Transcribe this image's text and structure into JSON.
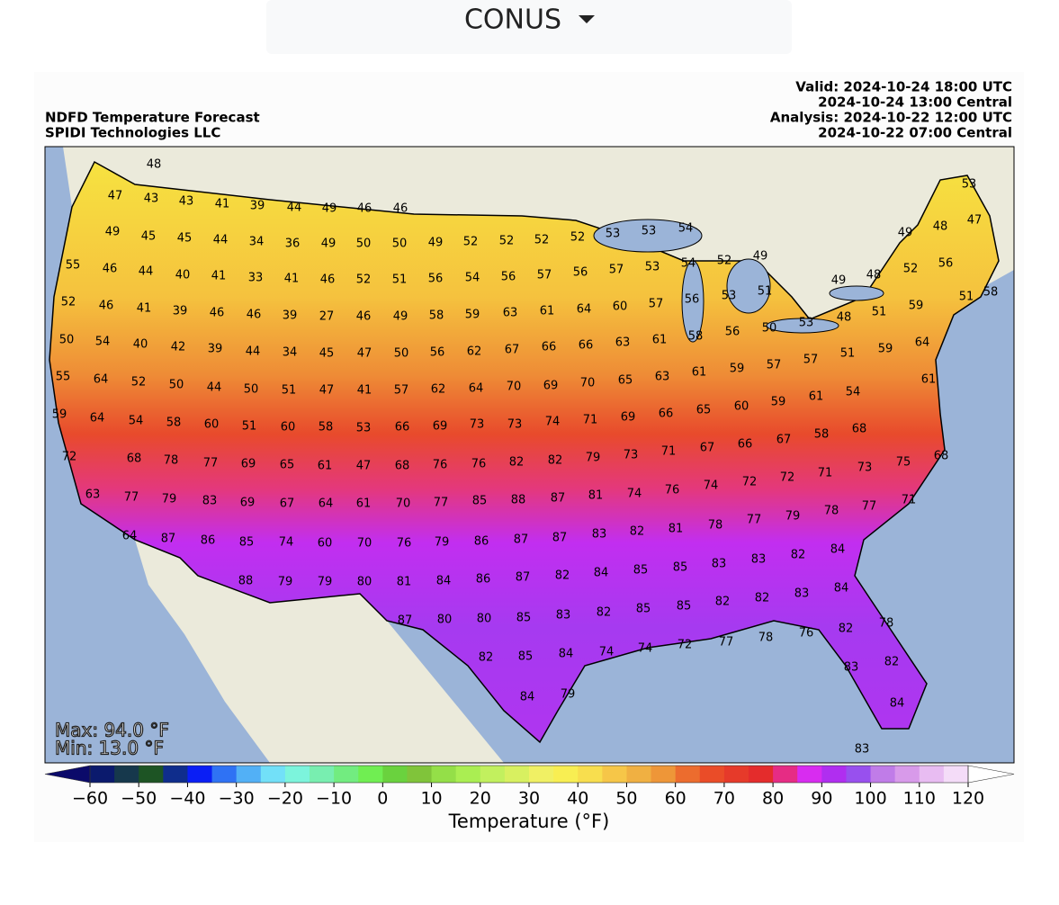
{
  "header": {
    "dropdown": "CONUS"
  },
  "figure": {
    "title_left": [
      "NDFD Temperature Forecast",
      "SPIDI Technologies LLC"
    ],
    "title_right": [
      "Valid: 2024-10-24 18:00 UTC",
      "2024-10-24 13:00 Central",
      "Analysis: 2024-10-22 12:00 UTC",
      "2024-10-22 07:00 Central"
    ],
    "stats": [
      "Max: 94.0 °F",
      "Min: 13.0 °F"
    ],
    "stations": [
      48,
      47,
      43,
      43,
      41,
      39,
      44,
      49,
      46,
      46,
      49,
      45,
      45,
      44,
      34,
      36,
      49,
      50,
      50,
      49,
      52,
      52,
      52,
      52,
      53,
      53,
      54,
      55,
      46,
      44,
      40,
      41,
      33,
      41,
      46,
      52,
      51,
      56,
      54,
      56,
      57,
      56,
      57,
      53,
      54,
      52,
      49,
      53,
      49,
      48,
      47,
      52,
      56,
      58,
      51,
      48,
      49,
      52,
      46,
      41,
      39,
      46,
      46,
      39,
      27,
      46,
      49,
      58,
      59,
      63,
      61,
      64,
      60,
      57,
      56,
      53,
      51,
      50,
      54,
      40,
      42,
      39,
      44,
      34,
      45,
      47,
      50,
      56,
      62,
      67,
      66,
      66,
      63,
      61,
      58,
      56,
      50,
      53,
      48,
      51,
      59,
      55,
      64,
      52,
      50,
      44,
      50,
      51,
      47,
      41,
      57,
      62,
      64,
      70,
      69,
      70,
      65,
      63,
      61,
      59,
      57,
      57,
      51,
      59,
      64,
      59,
      64,
      54,
      58,
      60,
      51,
      60,
      58,
      53,
      66,
      69,
      73,
      73,
      74,
      71,
      69,
      66,
      65,
      60,
      59,
      61,
      54,
      61,
      72,
      68,
      78,
      77,
      69,
      65,
      61,
      47,
      68,
      76,
      76,
      82,
      82,
      79,
      73,
      71,
      67,
      66,
      67,
      58,
      68,
      73,
      75,
      68,
      63,
      77,
      79,
      83,
      69,
      67,
      64,
      61,
      70,
      77,
      85,
      88,
      87,
      81,
      74,
      76,
      74,
      72,
      72,
      71,
      77,
      71,
      64,
      87,
      86,
      85,
      74,
      60,
      70,
      76,
      79,
      86,
      87,
      87,
      83,
      82,
      81,
      78,
      77,
      79,
      78,
      88,
      79,
      79,
      80,
      81,
      84,
      86,
      87,
      82,
      84,
      85,
      85,
      83,
      83,
      82,
      84,
      87,
      80,
      80,
      85,
      83,
      82,
      85,
      85,
      82,
      82,
      83,
      84,
      82,
      85,
      84,
      74,
      74,
      72,
      77,
      78,
      76,
      82,
      78,
      84,
      79,
      83,
      82,
      84,
      83
    ],
    "colorbar": {
      "label": "Temperature (°F)",
      "range": [
        -60,
        120
      ],
      "ticks": [
        {
          "value": -60,
          "label": "−60"
        },
        {
          "value": -50,
          "label": "−50"
        },
        {
          "value": -40,
          "label": "−40"
        },
        {
          "value": -30,
          "label": "−30"
        },
        {
          "value": -20,
          "label": "−20"
        },
        {
          "value": -10,
          "label": "−10"
        },
        0,
        10,
        20,
        30,
        40,
        50,
        60,
        70,
        80,
        90,
        100,
        110,
        120
      ],
      "colors": [
        "#0b1a6d",
        "#16384c",
        "#1d5424",
        "#0f2d8c",
        "#0a1ef5",
        "#2f72f4",
        "#52b0f6",
        "#72e0f8",
        "#7cf4dc",
        "#78eeb0",
        "#72ec80",
        "#70ee52",
        "#6ad23e",
        "#80c43a",
        "#94df48",
        "#aaee52",
        "#c2f05e",
        "#d8f060",
        "#f0f064",
        "#f8ee52",
        "#f8de4e",
        "#f6c648",
        "#f0b042",
        "#ee9638",
        "#ec6c2e",
        "#ea4c28",
        "#e63a2a",
        "#e42c2c",
        "#e62c84",
        "#d82cf0",
        "#b02ef0",
        "#9850ee",
        "#c07ce8",
        "#d89aea",
        "#e8bcf2",
        "#f4dcf8"
      ],
      "under_color": "#0b0a6a",
      "over_color": "#ffffff"
    }
  }
}
